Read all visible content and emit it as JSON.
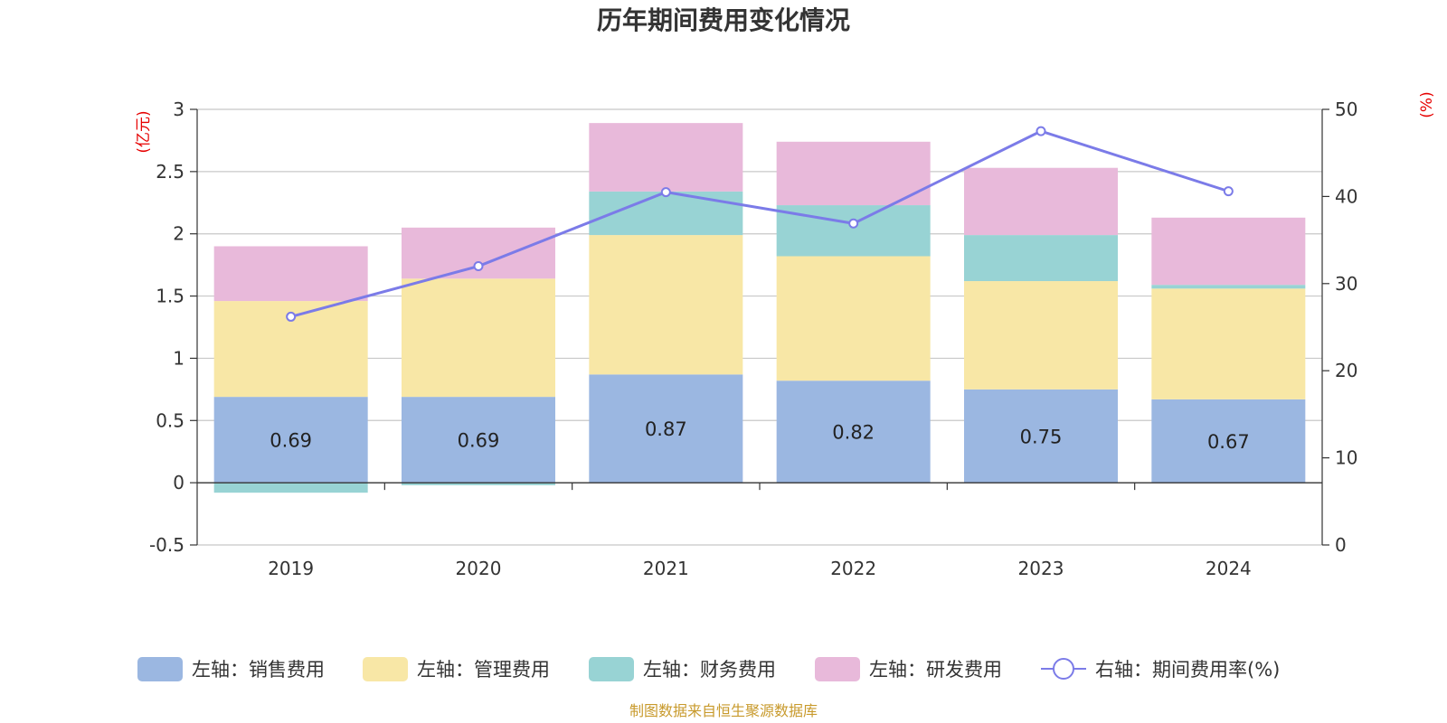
{
  "chart_data": {
    "type": "bar",
    "title": "历年期间费用变化情况",
    "categories": [
      "2019",
      "2020",
      "2021",
      "2022",
      "2023",
      "2024"
    ],
    "left_axis": {
      "unit": "(亿元)",
      "ylim": [
        -0.5,
        3
      ],
      "ticks": [
        -0.5,
        0,
        0.5,
        1,
        1.5,
        2,
        2.5,
        3
      ],
      "tick_labels": [
        "-0.5",
        "0",
        "0.5",
        "1",
        "1.5",
        "2",
        "2.5",
        "3"
      ]
    },
    "right_axis": {
      "unit": "(%)",
      "ylim": [
        0,
        50
      ],
      "ticks": [
        0,
        10,
        20,
        30,
        40,
        50
      ],
      "tick_labels": [
        "0",
        "10",
        "20",
        "30",
        "40",
        "50"
      ]
    },
    "series": [
      {
        "name": "左轴：销售费用",
        "kind": "bar",
        "axis": "left",
        "color": "#9bb7e1",
        "values": [
          0.69,
          0.69,
          0.87,
          0.82,
          0.75,
          0.67
        ],
        "data_labels": [
          "0.69",
          "0.69",
          "0.87",
          "0.82",
          "0.75",
          "0.67"
        ]
      },
      {
        "name": "左轴：管理费用",
        "kind": "bar",
        "axis": "left",
        "color": "#f8e7a6",
        "values": [
          0.77,
          0.95,
          1.12,
          1.0,
          0.87,
          0.89
        ]
      },
      {
        "name": "左轴：财务费用",
        "kind": "bar",
        "axis": "left",
        "color": "#98d3d4",
        "values": [
          -0.08,
          -0.02,
          0.35,
          0.41,
          0.37,
          0.03
        ]
      },
      {
        "name": "左轴：研发费用",
        "kind": "bar",
        "axis": "left",
        "color": "#e8b9da",
        "values": [
          0.44,
          0.41,
          0.55,
          0.51,
          0.54,
          0.54
        ]
      },
      {
        "name": "右轴：期间费用率(%)",
        "kind": "line",
        "axis": "right",
        "color": "#7b7be8",
        "values": [
          26.2,
          32.0,
          40.5,
          36.9,
          47.5,
          40.6
        ]
      }
    ],
    "grid": true,
    "legend_position": "bottom",
    "source": "制图数据来自恒生聚源数据库"
  }
}
